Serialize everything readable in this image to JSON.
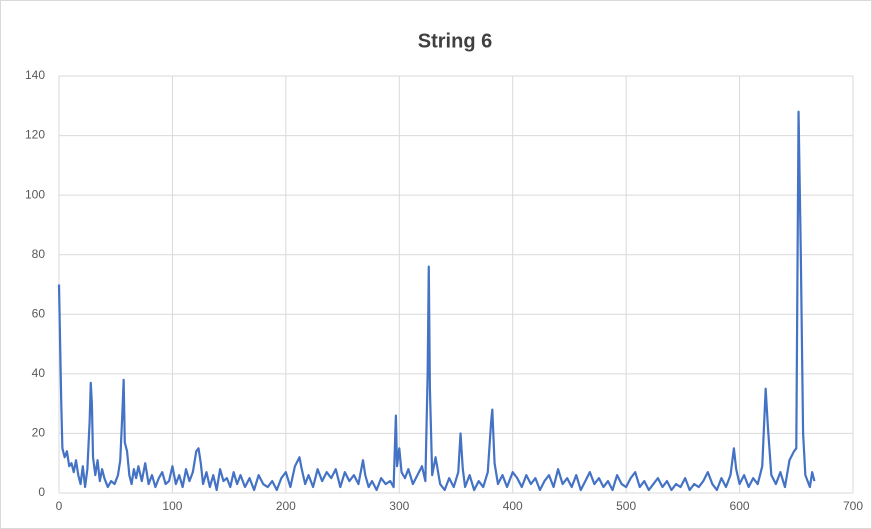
{
  "chart_data": {
    "type": "line",
    "title": "String 6",
    "x": [
      0,
      1,
      2,
      3,
      5,
      7,
      9,
      11,
      13,
      15,
      17,
      19,
      21,
      23,
      25,
      27,
      28,
      29,
      30,
      32,
      34,
      36,
      38,
      40,
      43,
      46,
      49,
      52,
      54,
      56,
      57,
      58,
      60,
      62,
      64,
      66,
      68,
      70,
      73,
      76,
      79,
      82,
      85,
      88,
      91,
      94,
      97,
      100,
      103,
      106,
      109,
      112,
      115,
      118,
      121,
      123,
      125,
      127,
      130,
      133,
      136,
      139,
      142,
      145,
      148,
      151,
      154,
      157,
      160,
      164,
      168,
      172,
      176,
      180,
      184,
      188,
      192,
      196,
      200,
      204,
      208,
      212,
      214,
      217,
      220,
      224,
      228,
      232,
      236,
      240,
      244,
      248,
      252,
      256,
      260,
      264,
      268,
      270,
      273,
      276,
      280,
      284,
      288,
      292,
      295,
      297,
      298,
      300,
      302,
      305,
      308,
      312,
      316,
      320,
      323,
      325,
      326,
      327,
      329,
      332,
      336,
      340,
      344,
      348,
      352,
      354,
      356,
      358,
      362,
      366,
      370,
      374,
      378,
      381,
      382,
      384,
      387,
      391,
      395,
      400,
      404,
      408,
      412,
      416,
      420,
      424,
      428,
      432,
      436,
      440,
      444,
      448,
      452,
      456,
      460,
      464,
      468,
      472,
      476,
      480,
      484,
      488,
      492,
      496,
      500,
      504,
      508,
      512,
      516,
      520,
      524,
      528,
      532,
      536,
      540,
      544,
      548,
      552,
      556,
      560,
      564,
      568,
      572,
      576,
      580,
      584,
      588,
      592,
      595,
      597,
      600,
      604,
      608,
      612,
      616,
      620,
      623,
      625,
      628,
      632,
      636,
      640,
      644,
      648,
      650,
      652,
      654,
      656,
      658,
      660,
      662,
      664,
      666
    ],
    "series": [
      {
        "color": "#4472c4",
        "values": [
          70,
          50,
          30,
          15,
          12,
          14,
          9,
          10,
          7,
          11,
          6,
          3,
          9,
          2,
          8,
          24,
          37,
          30,
          12,
          6,
          11,
          4,
          8,
          5,
          2,
          4,
          3,
          6,
          11,
          28,
          38,
          17,
          14,
          6,
          3,
          8,
          5,
          9,
          4,
          10,
          3,
          6,
          2,
          5,
          7,
          3,
          4,
          9,
          3,
          6,
          2,
          8,
          4,
          7,
          14,
          15,
          10,
          3,
          7,
          2,
          6,
          1,
          8,
          4,
          5,
          2,
          7,
          3,
          6,
          2,
          5,
          1,
          6,
          3,
          2,
          4,
          1,
          5,
          7,
          2,
          9,
          12,
          8,
          3,
          6,
          2,
          8,
          4,
          7,
          5,
          8,
          2,
          7,
          4,
          6,
          3,
          11,
          6,
          2,
          4,
          1,
          5,
          3,
          4,
          2,
          26,
          9,
          15,
          7,
          5,
          8,
          3,
          6,
          9,
          4,
          40,
          76,
          35,
          6,
          12,
          3,
          1,
          5,
          2,
          7,
          20,
          8,
          2,
          6,
          1,
          4,
          2,
          7,
          24,
          28,
          10,
          3,
          6,
          2,
          7,
          5,
          2,
          6,
          3,
          5,
          1,
          4,
          6,
          2,
          8,
          3,
          5,
          2,
          6,
          1,
          4,
          7,
          3,
          5,
          2,
          4,
          1,
          6,
          3,
          2,
          5,
          7,
          2,
          4,
          1,
          3,
          5,
          2,
          4,
          1,
          3,
          2,
          5,
          1,
          3,
          2,
          4,
          7,
          3,
          1,
          5,
          2,
          6,
          15,
          8,
          3,
          6,
          2,
          5,
          3,
          9,
          35,
          22,
          6,
          3,
          7,
          2,
          11,
          14,
          15,
          128,
          80,
          20,
          6,
          4,
          2,
          7,
          4
        ]
      }
    ],
    "xlim": [
      0,
      700
    ],
    "xticks": [
      0,
      100,
      200,
      300,
      400,
      500,
      600,
      700
    ],
    "ylim": [
      0,
      140
    ],
    "yticks": [
      0,
      20,
      40,
      60,
      80,
      100,
      120,
      140
    ],
    "grid": true
  }
}
